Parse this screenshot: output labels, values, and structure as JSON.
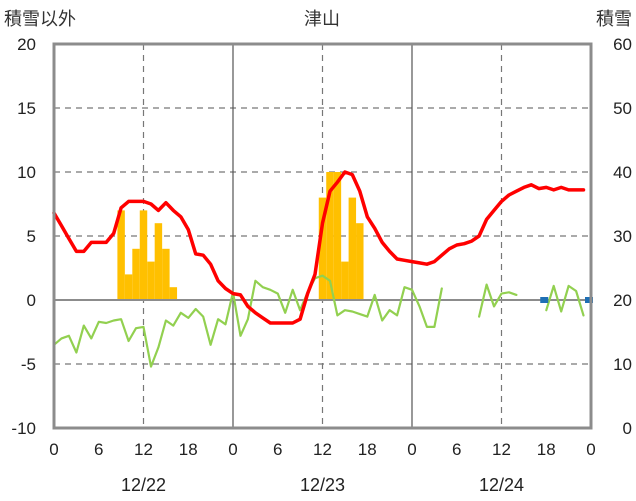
{
  "chart_data": {
    "type": "line",
    "title": "津山",
    "left_axis_label": "積雪以外",
    "right_axis_label": "積雪",
    "left_ylim": [
      -10,
      20
    ],
    "right_ylim": [
      0,
      60
    ],
    "left_ticks": [
      "20",
      "15",
      "10",
      "5",
      "0",
      "-5",
      "-10"
    ],
    "right_ticks": [
      "60",
      "50",
      "40",
      "30",
      "20",
      "10",
      "0"
    ],
    "x_ticks": [
      "0",
      "6",
      "12",
      "18",
      "0",
      "6",
      "12",
      "18",
      "0",
      "6",
      "12",
      "18",
      "0"
    ],
    "dates": [
      "12/22",
      "12/23",
      "12/24"
    ],
    "xlim_hours": [
      0,
      72
    ],
    "grid": true,
    "colors": {
      "temperature": "#ff0000",
      "snowfall": "#ffc000",
      "wind": "#92d050",
      "snow_depth": "#1f6fb4",
      "baseline": "#7030a0"
    },
    "temperature": {
      "x": [
        0,
        1,
        2,
        3,
        4,
        5,
        6,
        7,
        8,
        9,
        10,
        11,
        12,
        13,
        14,
        15,
        16,
        17,
        18,
        19,
        20,
        21,
        22,
        23,
        24,
        25,
        26,
        27,
        28,
        29,
        30,
        31,
        32,
        33,
        34,
        35,
        36,
        37,
        38,
        39,
        40,
        41,
        42,
        43,
        44,
        45,
        46,
        47,
        48,
        49,
        50,
        51,
        52,
        53,
        54,
        55,
        56,
        57,
        58,
        59,
        60,
        61,
        62,
        63,
        64,
        65,
        66,
        67,
        68,
        69,
        70,
        71
      ],
      "y": [
        6.8,
        5.8,
        4.8,
        3.8,
        3.8,
        4.5,
        4.5,
        4.5,
        5.2,
        7.2,
        7.7,
        7.7,
        7.7,
        7.5,
        7.0,
        7.6,
        7.0,
        6.5,
        5.5,
        3.6,
        3.5,
        2.8,
        1.5,
        0.9,
        0.5,
        0.4,
        -0.5,
        -1.0,
        -1.4,
        -1.8,
        -1.8,
        -1.8,
        -1.8,
        -1.5,
        0.5,
        2.0,
        6.0,
        8.5,
        9.2,
        10.0,
        9.8,
        8.5,
        6.5,
        5.6,
        4.5,
        3.8,
        3.2,
        3.1,
        3.0,
        2.9,
        2.8,
        3.0,
        3.5,
        4.0,
        4.3,
        4.4,
        4.6,
        5.0,
        6.3,
        7.0,
        7.7,
        8.2,
        8.5,
        8.8,
        9.0,
        8.7,
        8.8,
        8.6,
        8.8,
        8.6,
        8.6,
        8.6
      ]
    },
    "wind": {
      "x": [
        0,
        1,
        2,
        3,
        4,
        5,
        6,
        7,
        8,
        9,
        10,
        11,
        12,
        13,
        14,
        15,
        16,
        17,
        18,
        19,
        20,
        21,
        22,
        23,
        24,
        25,
        26,
        27,
        28,
        29,
        30,
        31,
        32,
        33,
        34,
        35,
        36,
        37,
        38,
        39,
        40,
        41,
        42,
        43,
        44,
        45,
        46,
        47,
        48,
        49,
        50,
        51,
        52,
        53,
        54,
        55,
        null,
        57,
        58,
        59,
        60,
        61,
        62,
        63,
        64,
        null,
        66,
        67,
        68,
        69,
        70,
        71
      ],
      "y": [
        -3.5,
        -3.0,
        -2.8,
        -4.1,
        -2.0,
        -3.0,
        -1.7,
        -1.8,
        -1.6,
        -1.5,
        -3.2,
        -2.2,
        -2.1,
        -5.2,
        -3.7,
        -1.6,
        -2.0,
        -1.0,
        -1.4,
        -0.7,
        -1.3,
        -3.5,
        -1.5,
        -1.9,
        0.6,
        -2.8,
        -1.5,
        1.5,
        1.0,
        0.8,
        0.5,
        -1.0,
        0.8,
        -0.8,
        0.6,
        1.7,
        1.9,
        1.5,
        -1.2,
        -0.8,
        -0.9,
        -1.1,
        -1.3,
        0.4,
        -1.6,
        -0.8,
        -1.2,
        1.0,
        0.8,
        -0.5,
        -2.1,
        -2.1,
        0.9,
        null,
        null,
        -1.3,
        null,
        -1.3,
        1.2,
        -0.5,
        0.5,
        0.6,
        0.4,
        null,
        null,
        null,
        -0.8,
        1.1,
        -0.9,
        1.1,
        0.7,
        -1.2
      ]
    },
    "snowfall": {
      "x": [
        9,
        10,
        11,
        12,
        13,
        14,
        15,
        16,
        36,
        37,
        38,
        39,
        40,
        41,
        42,
        43
      ],
      "y": [
        7,
        2,
        4,
        7,
        3,
        6,
        4,
        1,
        8,
        10,
        10,
        3,
        8,
        6,
        0,
        0
      ]
    },
    "snow_depth": {
      "x": [
        66,
        72
      ],
      "y": [
        20,
        20
      ]
    }
  }
}
